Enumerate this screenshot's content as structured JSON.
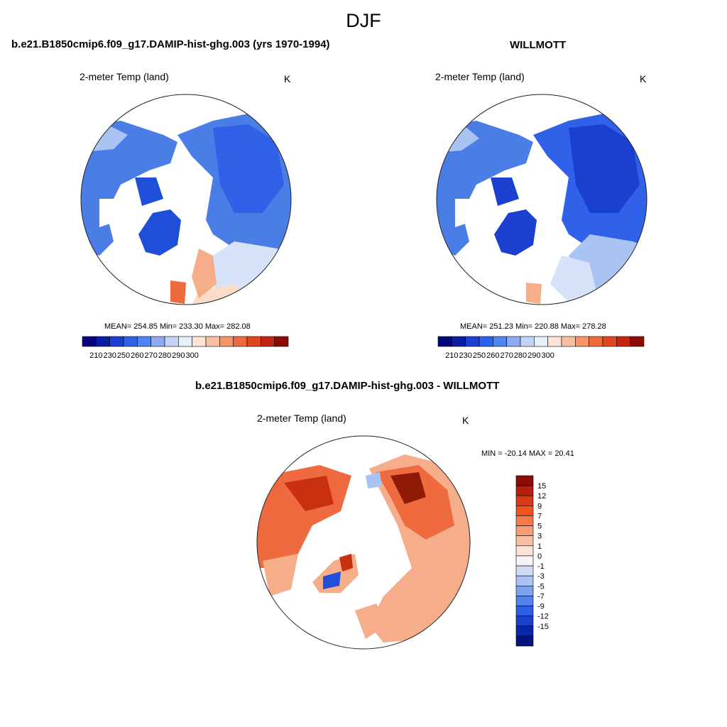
{
  "season": "DJF",
  "panels": [
    {
      "id": "model",
      "title": "b.e21.B1850cmip6.f09_g17.DAMIP-hist-ghg.003 (yrs 1970-1994)",
      "variable": "2-meter Temp (land)",
      "units": "K",
      "stats": "MEAN= 254.85  Min= 233.30  Max= 282.08"
    },
    {
      "id": "obs",
      "title": "WILLMOTT",
      "variable": "2-meter Temp (land)",
      "units": "K",
      "stats": "MEAN= 251.23  Min= 220.88  Max= 278.28"
    },
    {
      "id": "diff",
      "title": "b.e21.B1850cmip6.f09_g17.DAMIP-hist-ghg.003 - WILLMOTT",
      "variable": "2-meter Temp (land)",
      "units": "K",
      "stats": "MIN = -20.14 MAX =  20.41"
    }
  ],
  "abs_colorbar": {
    "colors": [
      "#05057d",
      "#0a1ea4",
      "#1b40d0",
      "#2f62e8",
      "#4f85f0",
      "#8eaaf2",
      "#c2d4f6",
      "#e8eefa",
      "#fce5d6",
      "#f8c0a3",
      "#f4956c",
      "#ee6a3d",
      "#e2451f",
      "#c22612",
      "#8c0b05"
    ],
    "tick_labels": [
      "210",
      "230",
      "250",
      "260",
      "270",
      "280",
      "290",
      "300"
    ]
  },
  "diff_colorbar": {
    "colors": [
      "#8c0b05",
      "#b81e0c",
      "#dc3813",
      "#f1521e",
      "#f47a4c",
      "#f69c77",
      "#f9bfa4",
      "#fde2d3",
      "#f4f4f6",
      "#cfdcf6",
      "#aac3f4",
      "#7fa2ef",
      "#5581ea",
      "#2e5fe2",
      "#1a40cc",
      "#0a27a8",
      "#05137e"
    ],
    "tick_labels": [
      "15",
      "12",
      "9",
      "7",
      "5",
      "3",
      "1",
      "0",
      "-1",
      "-3",
      "-5",
      "-7",
      "-9",
      "-12",
      "-15"
    ]
  },
  "map_colors": {
    "cold_deep": "#1f4fd8",
    "cold_mid": "#4a7ee6",
    "cold_light": "#a9c4f3",
    "cold_pale": "#d6e3f8",
    "warm_pale": "#fbdcc9",
    "warm_light": "#f6ad8a",
    "warm_mid": "#ef6a3f",
    "warm_deep": "#c9300f",
    "warm_dark": "#8f1a06"
  }
}
